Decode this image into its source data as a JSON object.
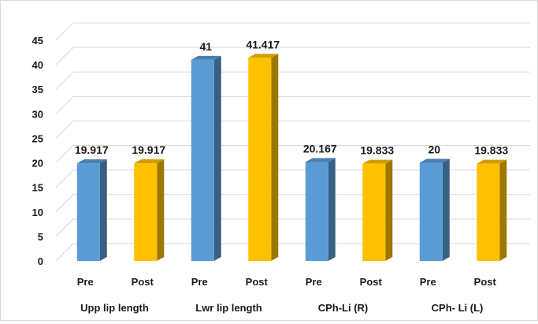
{
  "chart_data": {
    "type": "bar",
    "title": "",
    "xlabel": "",
    "ylabel": "",
    "ylim": [
      0,
      45
    ],
    "yticks": [
      0,
      5,
      10,
      15,
      20,
      25,
      30,
      35,
      40,
      45
    ],
    "grid": true,
    "legend": "none",
    "style": "3d-column",
    "groups": [
      {
        "label": "Upp lip length",
        "bars": [
          {
            "category": "Pre",
            "value": 19.917,
            "value_label": "19.917",
            "color": "#5b9bd5"
          },
          {
            "category": "Post",
            "value": 19.917,
            "value_label": "19.917",
            "color": "#ffc000"
          }
        ]
      },
      {
        "label": "Lwr lip length",
        "bars": [
          {
            "category": "Pre",
            "value": 41,
            "value_label": "41",
            "color": "#5b9bd5"
          },
          {
            "category": "Post",
            "value": 41.417,
            "value_label": "41.417",
            "color": "#ffc000"
          }
        ]
      },
      {
        "label": "CPh-Li (R)",
        "bars": [
          {
            "category": "Pre",
            "value": 20.167,
            "value_label": "20.167",
            "color": "#5b9bd5"
          },
          {
            "category": "Post",
            "value": 19.833,
            "value_label": "19.833",
            "color": "#ffc000"
          }
        ]
      },
      {
        "label": "CPh- Li (L)",
        "bars": [
          {
            "category": "Pre",
            "value": 20,
            "value_label": "20",
            "color": "#5b9bd5"
          },
          {
            "category": "Post",
            "value": 19.833,
            "value_label": "19.833",
            "color": "#ffc000"
          }
        ]
      }
    ]
  }
}
